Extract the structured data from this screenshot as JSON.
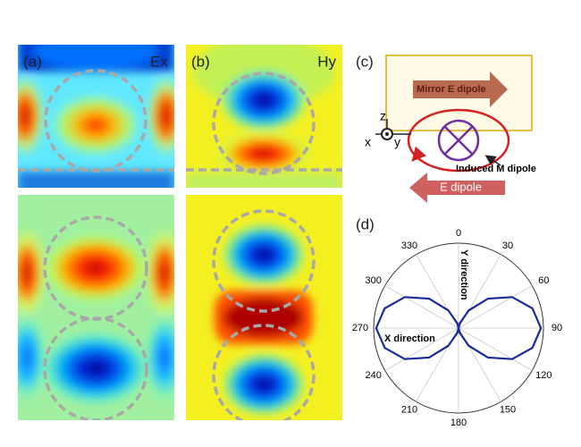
{
  "panel_a": {
    "label": "(a)",
    "field": "Ex"
  },
  "panel_b": {
    "label": "(b)",
    "field": "Hy"
  },
  "panel_c": {
    "label": "(c)",
    "mirror": "Mirror E dipole",
    "induced": "Induced M dipole",
    "dipole": "E dipole",
    "axis_z": "z",
    "axis_x": "x",
    "axis_y": "y"
  },
  "panel_d": {
    "label": "(d)"
  },
  "chart_data": {
    "type": "polar",
    "x": [
      0,
      15,
      30,
      45,
      60,
      75,
      90,
      105,
      120,
      135,
      150,
      165,
      180,
      195,
      210,
      225,
      240,
      255,
      270,
      285,
      300,
      315,
      330,
      345
    ],
    "values": [
      0,
      0.06,
      0.24,
      0.49,
      0.73,
      0.9,
      0.97,
      0.9,
      0.73,
      0.49,
      0.24,
      0.06,
      0,
      0.06,
      0.24,
      0.49,
      0.73,
      0.9,
      0.97,
      0.9,
      0.73,
      0.49,
      0.24,
      0.06
    ],
    "color": "#1a2a9a",
    "rlim": [
      0,
      1
    ],
    "thetaticks": [
      0,
      30,
      60,
      90,
      120,
      150,
      180,
      210,
      240,
      270,
      300,
      330
    ],
    "annotations": [
      "Y direction",
      "X direction"
    ]
  }
}
